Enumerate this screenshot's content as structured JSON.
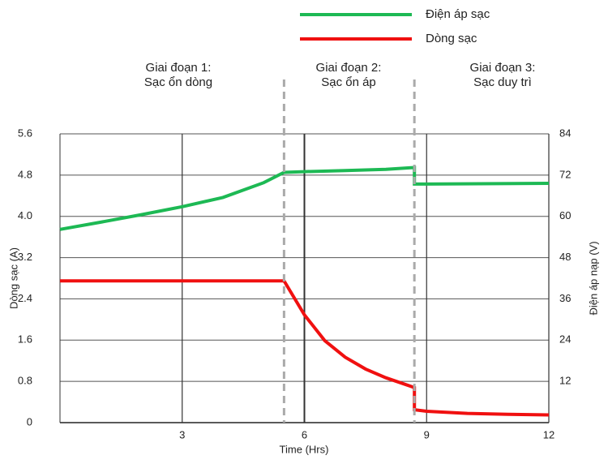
{
  "chart_data": {
    "type": "line",
    "legend": [
      "Điện áp sạc",
      "Dòng sạc"
    ],
    "stages": [
      [
        "Giai đoạn 1:",
        "Sạc ổn dòng"
      ],
      [
        "Giai đoạn 2:",
        "Sạc ổn áp"
      ],
      [
        "Giai đoạn 3:",
        "Sạc duy trì"
      ]
    ],
    "phase_lines": [
      5.5,
      8.7
    ],
    "x_label": "Time (Hrs)",
    "y_label": "Dòng sạc (A)",
    "y2_label": "Điện áp nạp (V)",
    "xlim": [
      0,
      12
    ],
    "xticks": [
      3,
      6,
      9,
      12
    ],
    "ylim": [
      0,
      5.6
    ],
    "yticks": [
      0,
      0.8,
      1.6,
      2.4,
      3.2,
      {
        "value": 4,
        "label": "4.0"
      },
      4.8,
      5.6
    ],
    "y2lim": [
      0,
      84
    ],
    "y2ticks": [
      12,
      24,
      36,
      48,
      60,
      72,
      84
    ],
    "grid": true,
    "series": [
      {
        "name": "Điện áp sạc",
        "color": "#1db954",
        "axis": "y2",
        "x": [
          0,
          1,
          2,
          3,
          4,
          5,
          5.5,
          6,
          7,
          8,
          8.7,
          8.7,
          9,
          12
        ],
        "values": [
          56.2,
          58.3,
          60.5,
          62.8,
          65.5,
          69.8,
          72.8,
          73.0,
          73.3,
          73.7,
          74.2,
          69.4,
          69.4,
          69.6
        ]
      },
      {
        "name": "Dòng sạc",
        "color": "#f01010",
        "x": [
          0,
          5.5,
          6,
          6.5,
          7,
          7.5,
          8,
          8.7,
          8.7,
          9,
          10,
          11,
          12
        ],
        "values": [
          2.75,
          2.75,
          2.09,
          1.59,
          1.27,
          1.04,
          0.87,
          0.68,
          0.25,
          0.22,
          0.18,
          0.16,
          0.15
        ]
      }
    ]
  }
}
